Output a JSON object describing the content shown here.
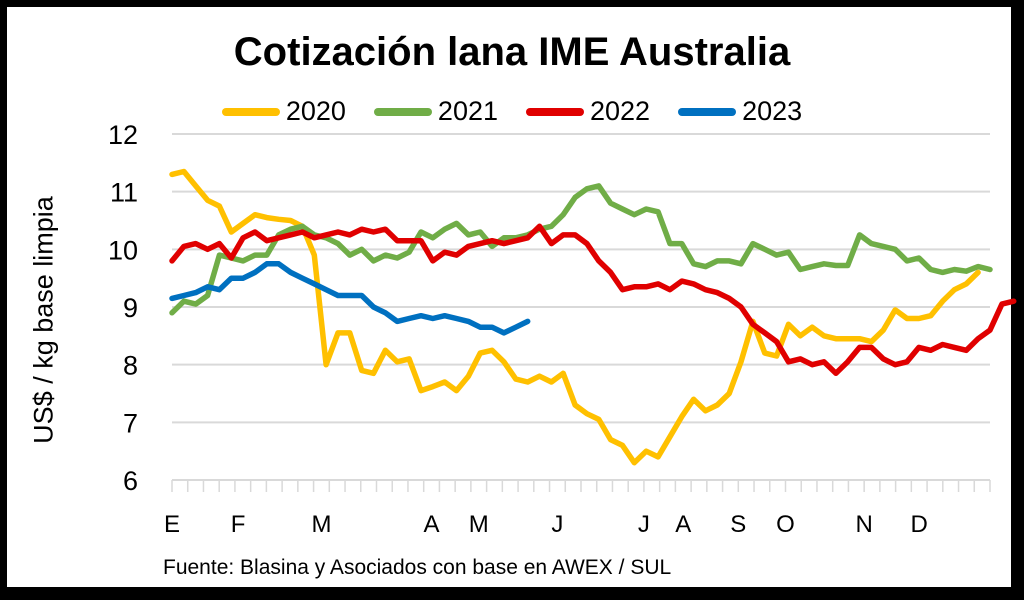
{
  "chart_data": {
    "type": "line",
    "title": "Cotización lana IME Australia",
    "xlabel": "",
    "ylabel": "US$ / kg base limpia",
    "ylim": [
      6,
      12
    ],
    "yticks": [
      6,
      7,
      8,
      9,
      10,
      11,
      12
    ],
    "grid": true,
    "legend_position": "top",
    "x_unit": "week of year",
    "month_labels": [
      "E",
      "F",
      "M",
      "A",
      "M",
      "J",
      "J",
      "A",
      "S",
      "O",
      "N",
      "D"
    ],
    "month_label_weeks": [
      0,
      4.2,
      9.5,
      16.5,
      19.5,
      24.5,
      30,
      32.5,
      36,
      39,
      44,
      47.5
    ],
    "series": [
      {
        "name": "2020",
        "color": "#FFC000",
        "values": [
          11.3,
          11.35,
          11.1,
          10.85,
          10.75,
          10.3,
          10.45,
          10.6,
          10.55,
          10.52,
          10.5,
          10.4,
          9.9,
          8.0,
          8.55,
          8.55,
          7.9,
          7.85,
          8.25,
          8.05,
          8.1,
          7.55,
          7.62,
          7.7,
          7.55,
          7.8,
          8.2,
          8.25,
          8.05,
          7.75,
          7.7,
          7.8,
          7.7,
          7.85,
          7.3,
          7.15,
          7.05,
          6.7,
          6.6,
          6.3,
          6.5,
          6.4,
          6.75,
          7.1,
          7.4,
          7.2,
          7.3,
          7.5,
          8.05,
          8.75,
          8.2,
          8.15,
          8.7,
          8.5,
          8.65,
          8.5,
          8.45,
          8.45,
          8.45,
          8.4,
          8.6,
          8.95,
          8.8,
          8.8,
          8.85,
          9.1,
          9.3,
          9.4,
          9.6
        ]
      },
      {
        "name": "2021",
        "color": "#70AD47",
        "values": [
          8.9,
          9.1,
          9.05,
          9.2,
          9.9,
          9.85,
          9.8,
          9.9,
          9.9,
          10.25,
          10.35,
          10.4,
          10.25,
          10.2,
          10.1,
          9.9,
          10.0,
          9.8,
          9.9,
          9.85,
          9.95,
          10.3,
          10.2,
          10.35,
          10.45,
          10.25,
          10.3,
          10.05,
          10.2,
          10.2,
          10.25,
          10.35,
          10.4,
          10.6,
          10.9,
          11.05,
          11.1,
          10.8,
          10.7,
          10.6,
          10.7,
          10.65,
          10.1,
          10.1,
          9.75,
          9.7,
          9.8,
          9.8,
          9.75,
          10.1,
          10.0,
          9.9,
          9.95,
          9.65,
          9.7,
          9.75,
          9.72,
          9.72,
          10.25,
          10.1,
          10.05,
          10.0,
          9.8,
          9.85,
          9.65,
          9.6,
          9.65,
          9.62,
          9.7,
          9.65
        ]
      },
      {
        "name": "2022",
        "color": "#E00000",
        "values": [
          9.8,
          10.05,
          10.1,
          10.0,
          10.1,
          9.85,
          10.2,
          10.3,
          10.15,
          10.2,
          10.25,
          10.3,
          10.2,
          10.25,
          10.3,
          10.25,
          10.35,
          10.3,
          10.35,
          10.15,
          10.15,
          10.15,
          9.8,
          9.95,
          9.9,
          10.05,
          10.1,
          10.15,
          10.1,
          10.15,
          10.2,
          10.4,
          10.1,
          10.25,
          10.25,
          10.1,
          9.8,
          9.6,
          9.3,
          9.35,
          9.35,
          9.4,
          9.3,
          9.45,
          9.4,
          9.3,
          9.25,
          9.15,
          9.0,
          8.7,
          8.55,
          8.4,
          8.05,
          8.1,
          8.0,
          8.05,
          7.85,
          8.05,
          8.3,
          8.3,
          8.1,
          8.0,
          8.05,
          8.3,
          8.25,
          8.35,
          8.3,
          8.25,
          8.45,
          8.6,
          9.05,
          9.1
        ]
      },
      {
        "name": "2023",
        "color": "#0070C0",
        "values": [
          9.15,
          9.2,
          9.25,
          9.35,
          9.3,
          9.5,
          9.5,
          9.6,
          9.75,
          9.75,
          9.6,
          9.5,
          9.4,
          9.3,
          9.2,
          9.2,
          9.2,
          9.0,
          8.9,
          8.75,
          8.8,
          8.85,
          8.8,
          8.85,
          8.8,
          8.75,
          8.65,
          8.65,
          8.55,
          8.65,
          8.75
        ]
      }
    ]
  },
  "footer": {
    "source": "Fuente: Blasina y Asociados con base en AWEX / SUL"
  }
}
